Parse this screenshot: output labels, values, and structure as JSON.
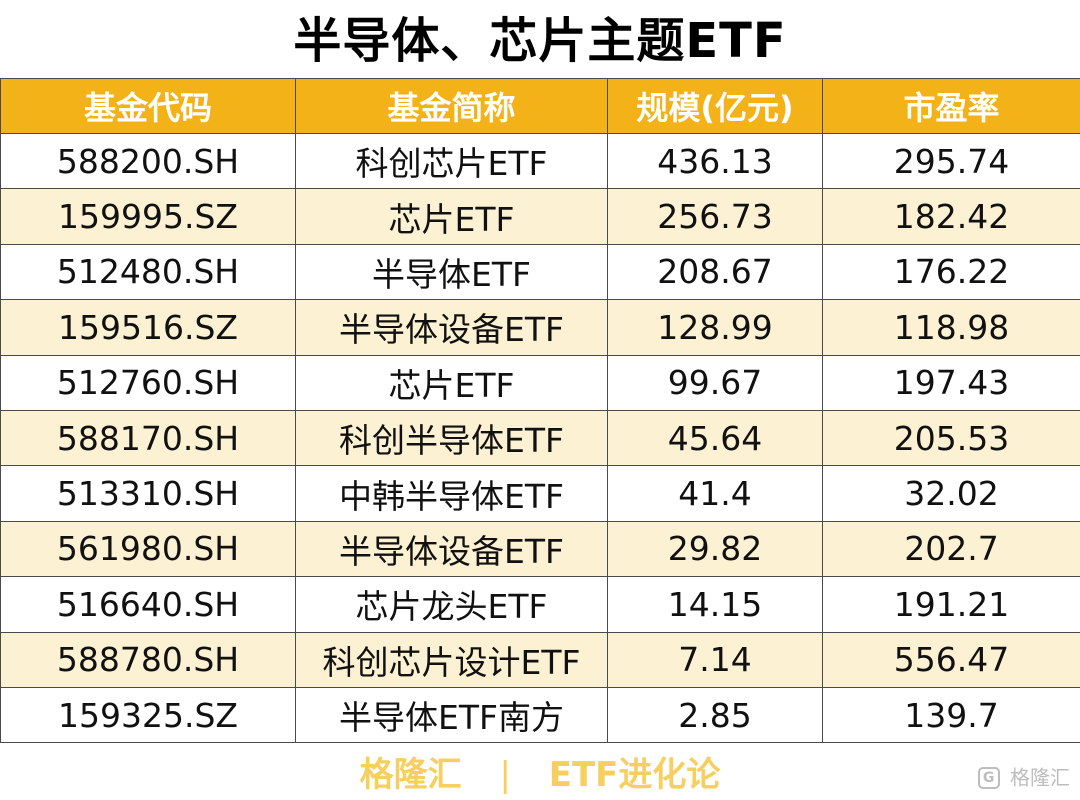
{
  "title": "半导体、芯片主题ETF",
  "table": {
    "headers": [
      "基金代码",
      "基金简称",
      "规模(亿元)",
      "市盈率"
    ],
    "rows": [
      [
        "588200.SH",
        "科创芯片ETF",
        "436.13",
        "295.74"
      ],
      [
        "159995.SZ",
        "芯片ETF",
        "256.73",
        "182.42"
      ],
      [
        "512480.SH",
        "半导体ETF",
        "208.67",
        "176.22"
      ],
      [
        "159516.SZ",
        "半导体设备ETF",
        "128.99",
        "118.98"
      ],
      [
        "512760.SH",
        "芯片ETF",
        "99.67",
        "197.43"
      ],
      [
        "588170.SH",
        "科创半导体ETF",
        "45.64",
        "205.53"
      ],
      [
        "513310.SH",
        "中韩半导体ETF",
        "41.4",
        "32.02"
      ],
      [
        "561980.SH",
        "半导体设备ETF",
        "29.82",
        "202.7"
      ],
      [
        "516640.SH",
        "芯片龙头ETF",
        "14.15",
        "191.21"
      ],
      [
        "588780.SH",
        "科创芯片设计ETF",
        "7.14",
        "556.47"
      ],
      [
        "159325.SZ",
        "半导体ETF南方",
        "2.85",
        "139.7"
      ]
    ]
  },
  "footer": {
    "brand": "格隆汇",
    "separator": "|",
    "column": "ETF进化论"
  },
  "watermark": {
    "icon_glyph": "G",
    "text": "格隆汇",
    "icon": "gelonghui-logo-icon"
  },
  "colors": {
    "header_bg": "#f3b217",
    "header_text": "#ffffff",
    "stripe_bg": "#fdf1d3",
    "footer_text": "#f6cf5f"
  }
}
